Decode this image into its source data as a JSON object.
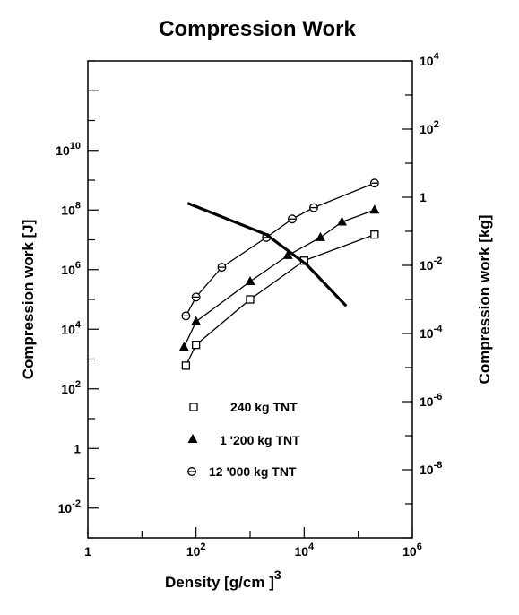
{
  "chart_data": {
    "type": "line",
    "title": "Compression Work",
    "xlabel": "Density   [g/cm  ]",
    "xlabel_superscript": "3",
    "ylabel_left": "Compression work  [J]",
    "ylabel_right": "Compression work  [kg]",
    "x_scale": "log",
    "y_scale": "log",
    "xlim": [
      1,
      1000000
    ],
    "ylim_left": [
      0.001,
      10000000000000
    ],
    "ylim_right": [
      1e-10,
      10000
    ],
    "grid": false,
    "legend_position": "lower-left inside plot",
    "x_ticks": [
      {
        "value": 1,
        "base": "1",
        "exp": ""
      },
      {
        "value": 100,
        "base": "10",
        "exp": "2"
      },
      {
        "value": 10000,
        "base": "10",
        "exp": "4"
      },
      {
        "value": 1000000,
        "base": "10",
        "exp": "6"
      }
    ],
    "y_left_ticks": [
      {
        "value": 0.01,
        "base": "10",
        "exp": "-2"
      },
      {
        "value": 1,
        "base": "1",
        "exp": ""
      },
      {
        "value": 100,
        "base": "10",
        "exp": "2"
      },
      {
        "value": 10000,
        "base": "10",
        "exp": "4"
      },
      {
        "value": 1000000,
        "base": "10",
        "exp": "6"
      },
      {
        "value": 100000000,
        "base": "10",
        "exp": "8"
      },
      {
        "value": 10000000000,
        "base": "10",
        "exp": "10"
      }
    ],
    "y_right_ticks": [
      {
        "value": 1e-08,
        "base": "10",
        "exp": "-8"
      },
      {
        "value": 1e-06,
        "base": "10",
        "exp": "-6"
      },
      {
        "value": 0.0001,
        "base": "10",
        "exp": "-4"
      },
      {
        "value": 0.01,
        "base": "10",
        "exp": "-2"
      },
      {
        "value": 1,
        "base": "1",
        "exp": ""
      },
      {
        "value": 100,
        "base": "10",
        "exp": "2"
      },
      {
        "value": 10000,
        "base": "10",
        "exp": "4"
      }
    ],
    "series": [
      {
        "name": "240 kg TNT",
        "marker": "square-open",
        "x": [
          65,
          100,
          1000,
          10000,
          200000
        ],
        "y": [
          600,
          3000,
          100000,
          2000000,
          15000000
        ]
      },
      {
        "name": "1 '200 kg TNT",
        "marker": "triangle-filled",
        "x": [
          60,
          100,
          1000,
          5000,
          20000,
          50000,
          200000
        ],
        "y": [
          2500,
          18000,
          400000,
          3000000,
          12000000,
          40000000,
          100000000
        ]
      },
      {
        "name": "12 '000 kg TNT",
        "marker": "circle-bar",
        "x": [
          65,
          100,
          300,
          2000,
          6000,
          15000,
          200000
        ],
        "y": [
          28000,
          120000,
          1200000,
          12000000,
          50000000,
          120000000,
          800000000
        ]
      },
      {
        "name": "",
        "marker": "none",
        "bold": true,
        "x": [
          70,
          2000,
          11000,
          60000
        ],
        "y": [
          170000000,
          15000000,
          1500000,
          60000
        ]
      }
    ]
  }
}
